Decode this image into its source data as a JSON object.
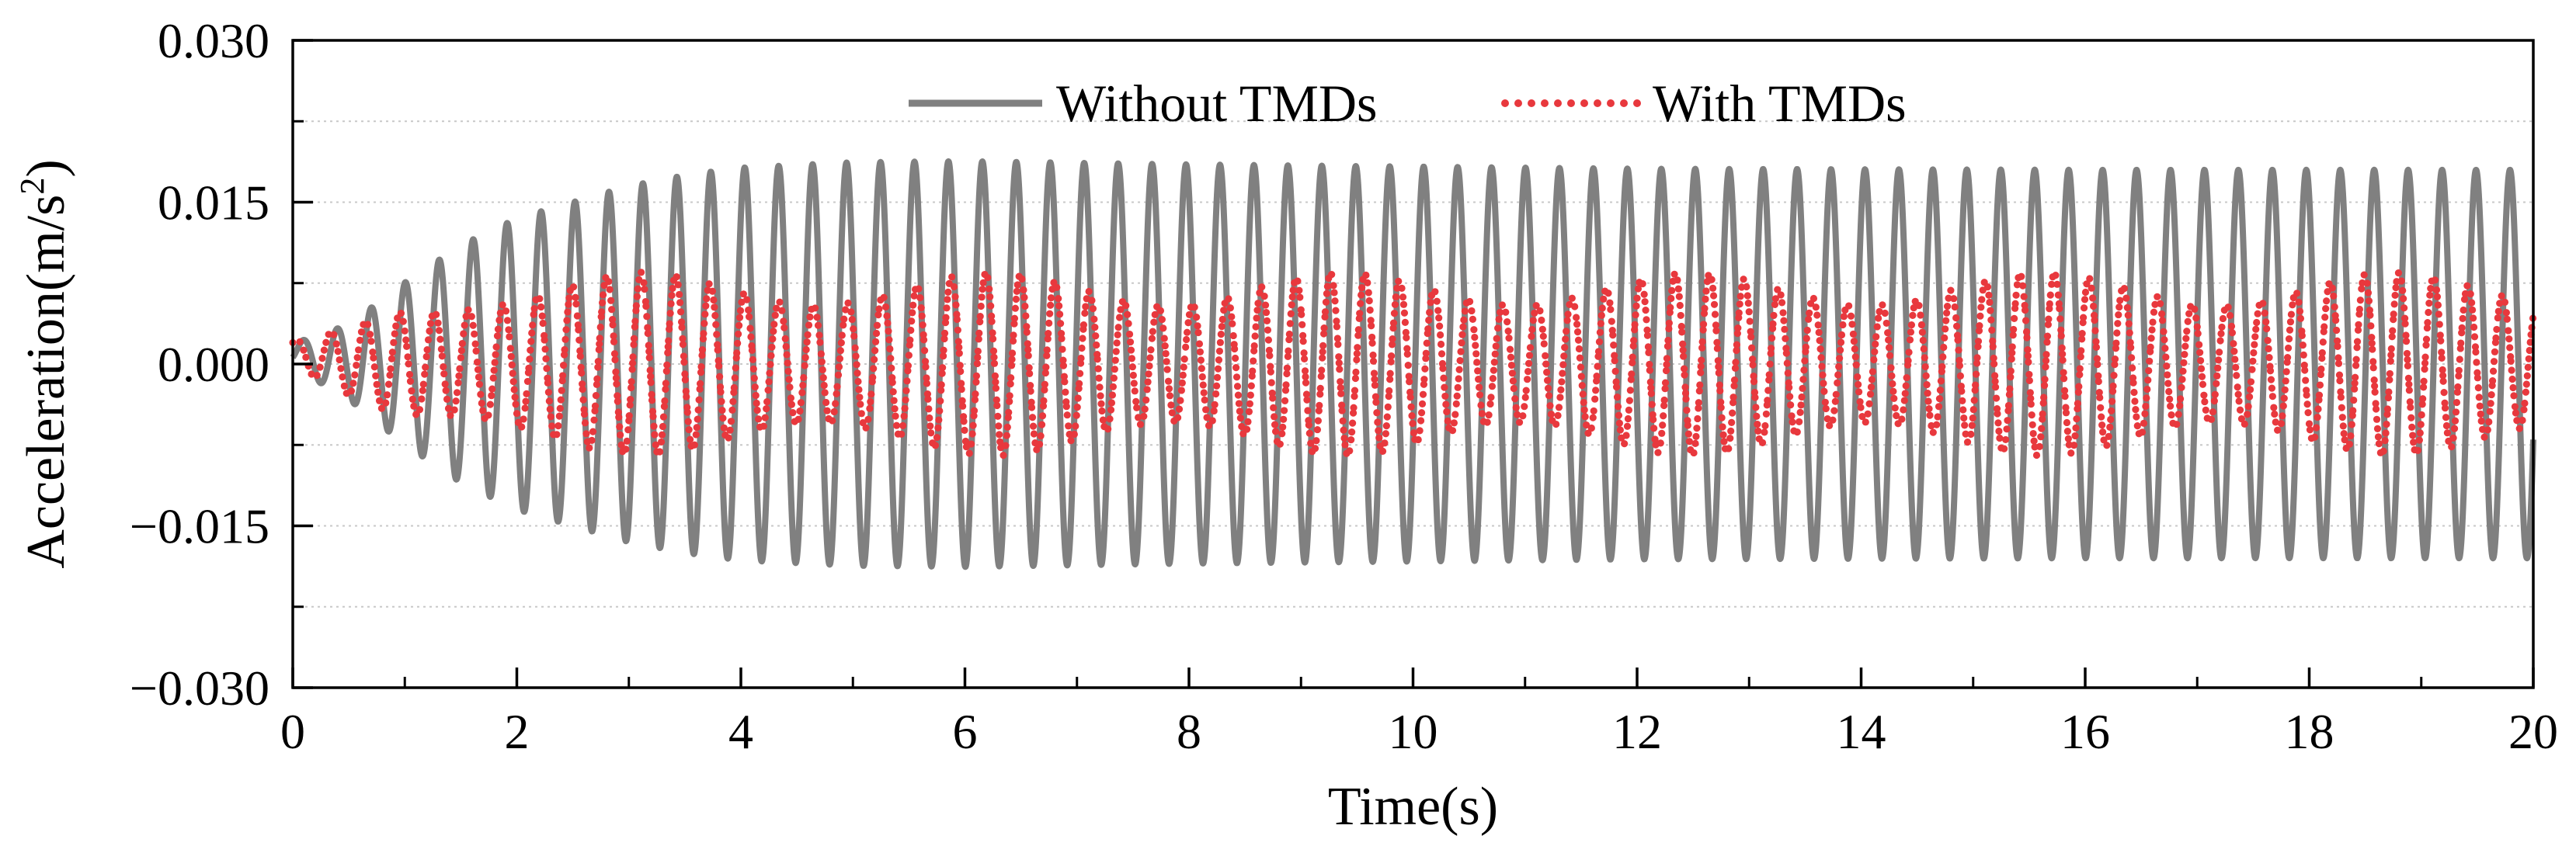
{
  "chart_data": {
    "type": "line",
    "title": "",
    "xlabel": "Time(s)",
    "ylabel_main": "Acceleration(m/s",
    "ylabel_sup": "2",
    "ylabel_close": ")",
    "xlim": [
      0,
      20
    ],
    "ylim": [
      -0.03,
      0.03
    ],
    "xticks": [
      0,
      2,
      4,
      6,
      8,
      10,
      12,
      14,
      16,
      18,
      20
    ],
    "xtick_labels": [
      "0",
      "2",
      "4",
      "6",
      "8",
      "10",
      "12",
      "14",
      "16",
      "18",
      "20"
    ],
    "yticks": [
      -0.03,
      -0.015,
      0.0,
      0.015,
      0.03
    ],
    "ytick_labels": [
      "−0.030",
      "−0.015",
      "0.000",
      "0.015",
      "0.030"
    ],
    "grid": "horizontal dotted",
    "legend_position": "top-center",
    "series": [
      {
        "name": "Without TMDs",
        "color": "#808080",
        "style": "solid",
        "model": "growing sinusoid",
        "frequency_hz": 3.3,
        "envelope": [
          [
            0.0,
            0.001
          ],
          [
            0.5,
            0.0035
          ],
          [
            1.0,
            0.0075
          ],
          [
            1.5,
            0.011
          ],
          [
            2.0,
            0.0135
          ],
          [
            2.5,
            0.015
          ],
          [
            3.0,
            0.0165
          ],
          [
            3.5,
            0.0175
          ],
          [
            4.0,
            0.0182
          ],
          [
            5.0,
            0.0187
          ],
          [
            6.0,
            0.0188
          ],
          [
            8.0,
            0.0185
          ],
          [
            12.0,
            0.0181
          ],
          [
            16.0,
            0.018
          ],
          [
            20.0,
            0.018
          ]
        ]
      },
      {
        "name": "With TMDs",
        "color": "#e8383d",
        "style": "dotted",
        "model": "beating sinusoid",
        "frequency_hz": 3.25,
        "beat_frequency_hz": 0.32,
        "envelope": [
          [
            0.0,
            0.001
          ],
          [
            0.5,
            0.0035
          ],
          [
            1.0,
            0.0065
          ],
          [
            1.5,
            0.0078
          ],
          [
            2.0,
            0.0083
          ],
          [
            3.0,
            0.0085
          ],
          [
            20.0,
            0.0085
          ]
        ]
      }
    ]
  }
}
